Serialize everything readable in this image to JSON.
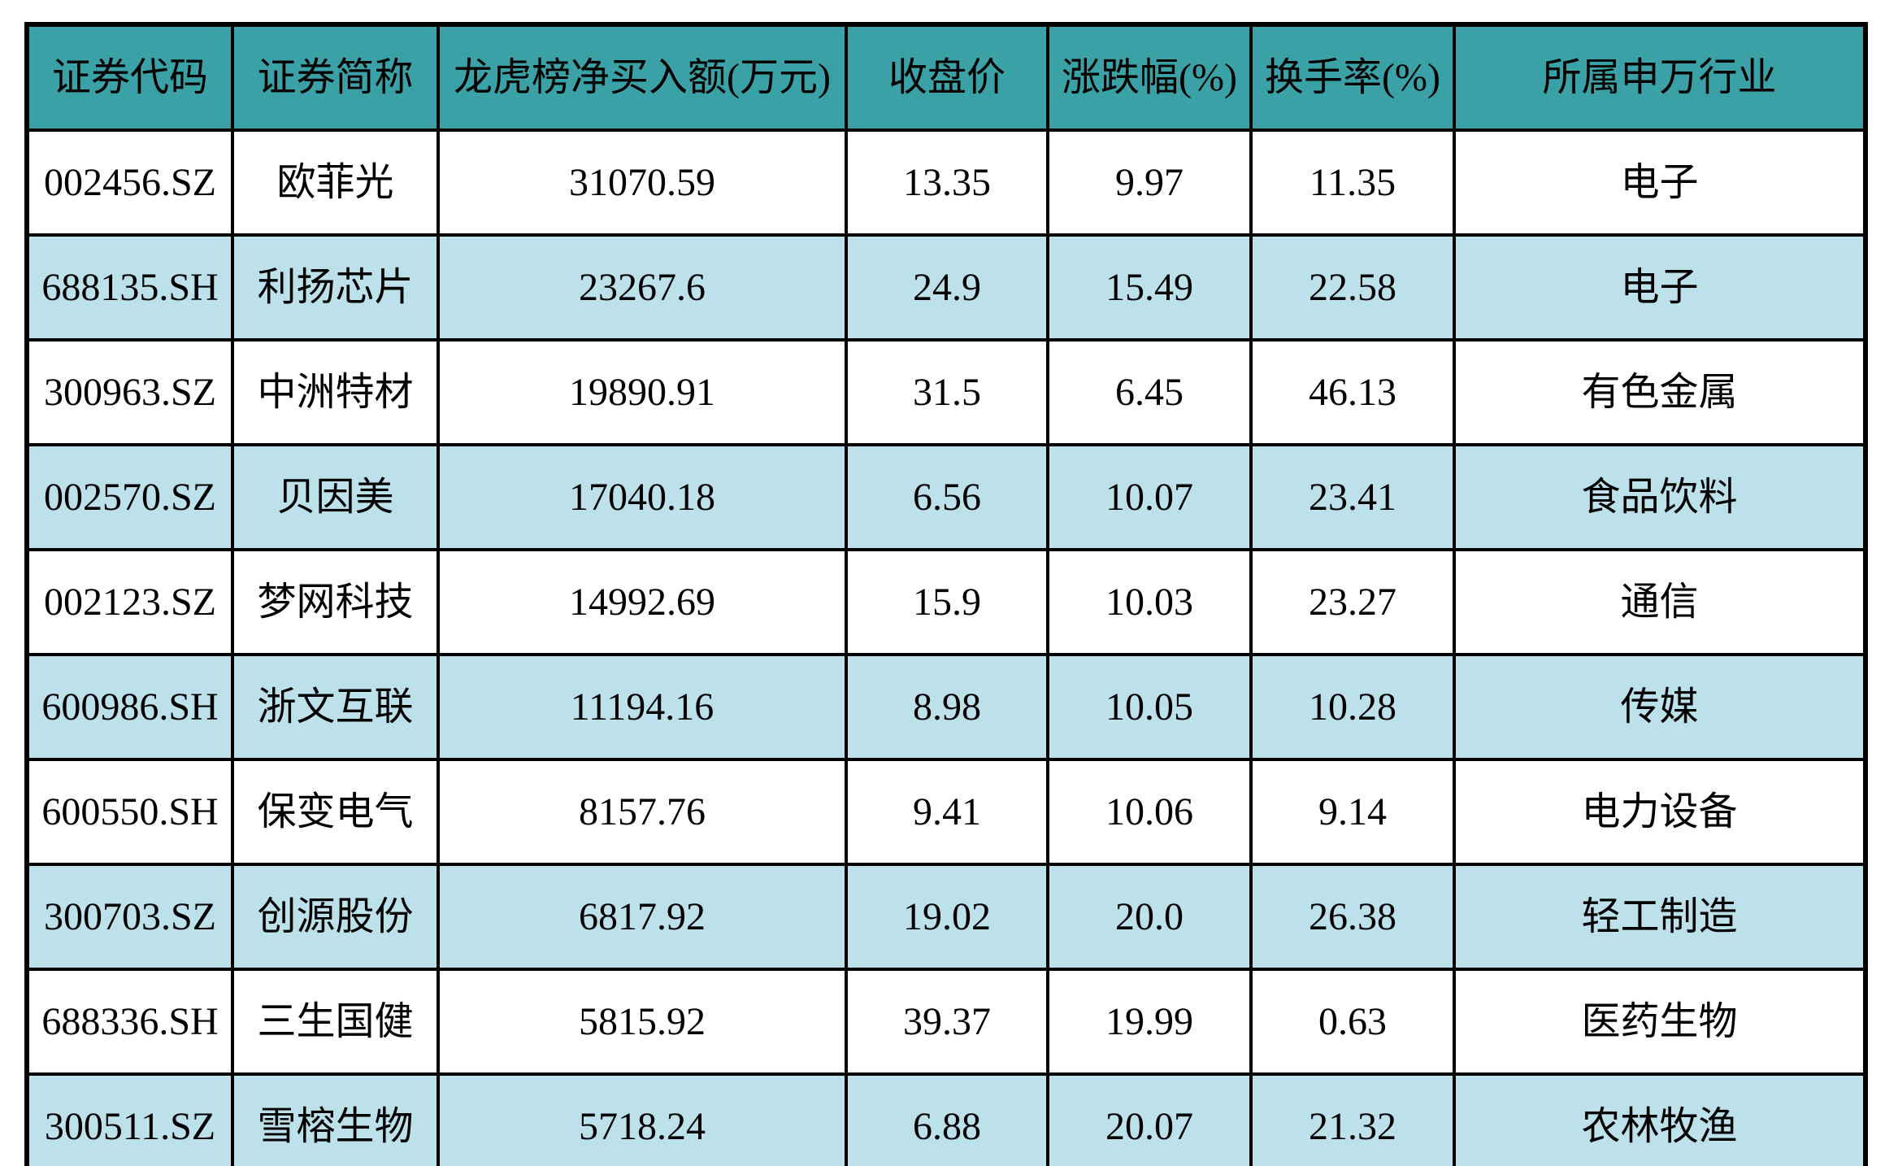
{
  "table": {
    "column_keys": [
      "code",
      "name",
      "net-buy",
      "close-price",
      "change-pct",
      "turnover-rate",
      "industry"
    ],
    "headers": [
      "证券代码",
      "证券简称",
      "龙虎榜净买入额(万元)",
      "收盘价",
      "涨跌幅(%)",
      "换手率(%)",
      "所属申万行业"
    ],
    "rows": [
      [
        "002456.SZ",
        "欧菲光",
        "31070.59",
        "13.35",
        "9.97",
        "11.35",
        "电子"
      ],
      [
        "688135.SH",
        "利扬芯片",
        "23267.6",
        "24.9",
        "15.49",
        "22.58",
        "电子"
      ],
      [
        "300963.SZ",
        "中洲特材",
        "19890.91",
        "31.5",
        "6.45",
        "46.13",
        "有色金属"
      ],
      [
        "002570.SZ",
        "贝因美",
        "17040.18",
        "6.56",
        "10.07",
        "23.41",
        "食品饮料"
      ],
      [
        "002123.SZ",
        "梦网科技",
        "14992.69",
        "15.9",
        "10.03",
        "23.27",
        "通信"
      ],
      [
        "600986.SH",
        "浙文互联",
        "11194.16",
        "8.98",
        "10.05",
        "10.28",
        "传媒"
      ],
      [
        "600550.SH",
        "保变电气",
        "8157.76",
        "9.41",
        "10.06",
        "9.14",
        "电力设备"
      ],
      [
        "300703.SZ",
        "创源股份",
        "6817.92",
        "19.02",
        "20.0",
        "26.38",
        "轻工制造"
      ],
      [
        "688336.SH",
        "三生国健",
        "5815.92",
        "39.37",
        "19.99",
        "0.63",
        "医药生物"
      ],
      [
        "300511.SZ",
        "雪榕生物",
        "5718.24",
        "6.88",
        "20.07",
        "21.32",
        "农林牧渔"
      ]
    ]
  },
  "colors": {
    "header_bg": "#3AA2A6",
    "row_bg": "#FFFFFF",
    "alt_row_bg": "#BCE1EA",
    "border": "#000000",
    "text": "#000000"
  },
  "chart_data": {
    "type": "table",
    "title": "",
    "columns": [
      "证券代码",
      "证券简称",
      "龙虎榜净买入额(万元)",
      "收盘价",
      "涨跌幅(%)",
      "换手率(%)",
      "所属申万行业"
    ],
    "rows": [
      {
        "证券代码": "002456.SZ",
        "证券简称": "欧菲光",
        "龙虎榜净买入额(万元)": 31070.59,
        "收盘价": 13.35,
        "涨跌幅(%)": 9.97,
        "换手率(%)": 11.35,
        "所属申万行业": "电子"
      },
      {
        "证券代码": "688135.SH",
        "证券简称": "利扬芯片",
        "龙虎榜净买入额(万元)": 23267.6,
        "收盘价": 24.9,
        "涨跌幅(%)": 15.49,
        "换手率(%)": 22.58,
        "所属申万行业": "电子"
      },
      {
        "证券代码": "300963.SZ",
        "证券简称": "中洲特材",
        "龙虎榜净买入额(万元)": 19890.91,
        "收盘价": 31.5,
        "涨跌幅(%)": 6.45,
        "换手率(%)": 46.13,
        "所属申万行业": "有色金属"
      },
      {
        "证券代码": "002570.SZ",
        "证券简称": "贝因美",
        "龙虎榜净买入额(万元)": 17040.18,
        "收盘价": 6.56,
        "涨跌幅(%)": 10.07,
        "换手率(%)": 23.41,
        "所属申万行业": "食品饮料"
      },
      {
        "证券代码": "002123.SZ",
        "证券简称": "梦网科技",
        "龙虎榜净买入额(万元)": 14992.69,
        "收盘价": 15.9,
        "涨跌幅(%)": 10.03,
        "换手率(%)": 23.27,
        "所属申万行业": "通信"
      },
      {
        "证券代码": "600986.SH",
        "证券简称": "浙文互联",
        "龙虎榜净买入额(万元)": 11194.16,
        "收盘价": 8.98,
        "涨跌幅(%)": 10.05,
        "换手率(%)": 10.28,
        "所属申万行业": "传媒"
      },
      {
        "证券代码": "600550.SH",
        "证券简称": "保变电气",
        "龙虎榜净买入额(万元)": 8157.76,
        "收盘价": 9.41,
        "涨跌幅(%)": 10.06,
        "换手率(%)": 9.14,
        "所属申万行业": "电力设备"
      },
      {
        "证券代码": "300703.SZ",
        "证券简称": "创源股份",
        "龙虎榜净买入额(万元)": 6817.92,
        "收盘价": 19.02,
        "涨跌幅(%)": 20.0,
        "换手率(%)": 26.38,
        "所属申万行业": "轻工制造"
      },
      {
        "证券代码": "688336.SH",
        "证券简称": "三生国健",
        "龙虎榜净买入额(万元)": 5815.92,
        "收盘价": 39.37,
        "涨跌幅(%)": 19.99,
        "换手率(%)": 0.63,
        "所属申万行业": "医药生物"
      },
      {
        "证券代码": "300511.SZ",
        "证券简称": "雪榕生物",
        "龙虎榜净买入额(万元)": 5718.24,
        "收盘价": 6.88,
        "涨跌幅(%)": 20.07,
        "换手率(%)": 21.32,
        "所属申万行业": "农林牧渔"
      }
    ],
    "layout": {
      "grid": true,
      "header_background": "#3AA2A6",
      "zebra_striping": "even rows #BCE1EA, odd rows white"
    }
  }
}
